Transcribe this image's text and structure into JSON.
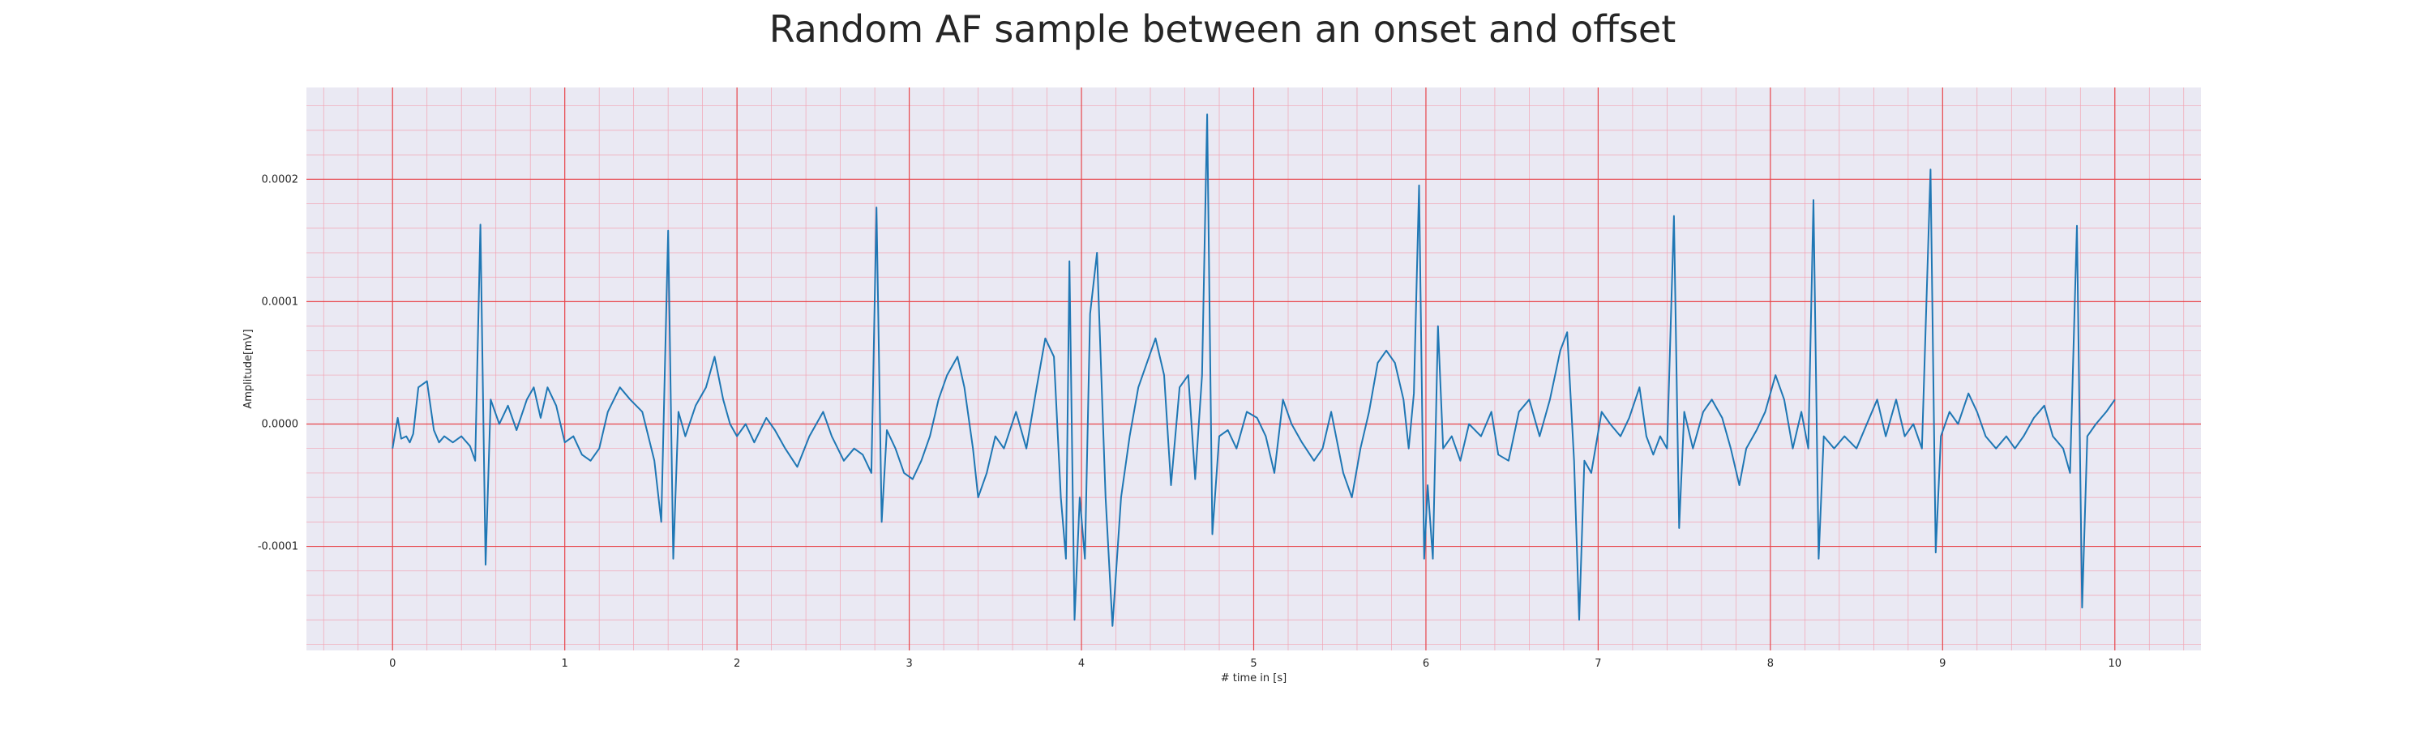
{
  "chart_data": {
    "type": "line",
    "title": "Random AF sample between an onset and offset",
    "xlabel": "# time in [s]",
    "ylabel": "Amplitude[mV]",
    "xlim": [
      -0.5,
      10.5
    ],
    "ylim": [
      -0.000185,
      0.000275
    ],
    "x_ticks": [
      0,
      1,
      2,
      3,
      4,
      5,
      6,
      7,
      8,
      9,
      10
    ],
    "x_tick_labels": [
      "0",
      "1",
      "2",
      "3",
      "4",
      "5",
      "6",
      "7",
      "8",
      "9",
      "10"
    ],
    "y_ticks": [
      -0.0001,
      0.0,
      0.0001,
      0.0002
    ],
    "y_tick_labels": [
      "-0.0001",
      "0.0000",
      "0.0001",
      "0.0002"
    ],
    "grid": true,
    "minor_grid": true,
    "colors": {
      "line": "#1f77b4",
      "background": "#eae9f3",
      "major_grid": "#e8464b",
      "minor_grid": "#f2a3b3"
    },
    "series": [
      {
        "points": [
          [
            0.0,
            -2e-05
          ],
          [
            0.03,
            5e-06
          ],
          [
            0.05,
            -1.2e-05
          ],
          [
            0.08,
            -1e-05
          ],
          [
            0.1,
            -1.5e-05
          ],
          [
            0.12,
            -8e-06
          ],
          [
            0.15,
            3e-05
          ],
          [
            0.2,
            3.5e-05
          ],
          [
            0.24,
            -5e-06
          ],
          [
            0.27,
            -1.5e-05
          ],
          [
            0.3,
            -1e-05
          ],
          [
            0.35,
            -1.5e-05
          ],
          [
            0.4,
            -1e-05
          ],
          [
            0.45,
            -1.8e-05
          ],
          [
            0.48,
            -3e-05
          ],
          [
            0.51,
            0.000163
          ],
          [
            0.54,
            -0.000115
          ],
          [
            0.57,
            2e-05
          ],
          [
            0.62,
            0.0
          ],
          [
            0.67,
            1.5e-05
          ],
          [
            0.72,
            -5e-06
          ],
          [
            0.78,
            2e-05
          ],
          [
            0.82,
            3e-05
          ],
          [
            0.86,
            5e-06
          ],
          [
            0.9,
            3e-05
          ],
          [
            0.95,
            1.5e-05
          ],
          [
            1.0,
            -1.5e-05
          ],
          [
            1.05,
            -1e-05
          ],
          [
            1.1,
            -2.5e-05
          ],
          [
            1.15,
            -3e-05
          ],
          [
            1.2,
            -2e-05
          ],
          [
            1.25,
            1e-05
          ],
          [
            1.32,
            3e-05
          ],
          [
            1.38,
            2e-05
          ],
          [
            1.45,
            1e-05
          ],
          [
            1.52,
            -3e-05
          ],
          [
            1.56,
            -8e-05
          ],
          [
            1.6,
            0.000158
          ],
          [
            1.63,
            -0.00011
          ],
          [
            1.66,
            1e-05
          ],
          [
            1.7,
            -1e-05
          ],
          [
            1.76,
            1.5e-05
          ],
          [
            1.82,
            3e-05
          ],
          [
            1.87,
            5.5e-05
          ],
          [
            1.92,
            2e-05
          ],
          [
            1.96,
            0.0
          ],
          [
            2.0,
            -1e-05
          ],
          [
            2.05,
            0.0
          ],
          [
            2.1,
            -1.5e-05
          ],
          [
            2.17,
            5e-06
          ],
          [
            2.22,
            -5e-06
          ],
          [
            2.28,
            -2e-05
          ],
          [
            2.35,
            -3.5e-05
          ],
          [
            2.42,
            -1e-05
          ],
          [
            2.5,
            1e-05
          ],
          [
            2.55,
            -1e-05
          ],
          [
            2.62,
            -3e-05
          ],
          [
            2.68,
            -2e-05
          ],
          [
            2.73,
            -2.5e-05
          ],
          [
            2.78,
            -4e-05
          ],
          [
            2.81,
            0.000177
          ],
          [
            2.84,
            -8e-05
          ],
          [
            2.87,
            -5e-06
          ],
          [
            2.92,
            -2e-05
          ],
          [
            2.97,
            -4e-05
          ],
          [
            3.02,
            -4.5e-05
          ],
          [
            3.07,
            -3e-05
          ],
          [
            3.12,
            -1e-05
          ],
          [
            3.17,
            2e-05
          ],
          [
            3.22,
            4e-05
          ],
          [
            3.28,
            5.5e-05
          ],
          [
            3.32,
            3e-05
          ],
          [
            3.37,
            -2e-05
          ],
          [
            3.4,
            -6e-05
          ],
          [
            3.45,
            -4e-05
          ],
          [
            3.5,
            -1e-05
          ],
          [
            3.55,
            -2e-05
          ],
          [
            3.62,
            1e-05
          ],
          [
            3.68,
            -2e-05
          ],
          [
            3.74,
            3e-05
          ],
          [
            3.79,
            7e-05
          ],
          [
            3.84,
            5.5e-05
          ],
          [
            3.88,
            -6e-05
          ],
          [
            3.91,
            -0.00011
          ],
          [
            3.93,
            0.000133
          ],
          [
            3.96,
            -0.00016
          ],
          [
            3.99,
            -6e-05
          ],
          [
            4.02,
            -0.00011
          ],
          [
            4.05,
            9e-05
          ],
          [
            4.09,
            0.00014
          ],
          [
            4.14,
            -6e-05
          ],
          [
            4.18,
            -0.000165
          ],
          [
            4.23,
            -6e-05
          ],
          [
            4.28,
            -1e-05
          ],
          [
            4.33,
            3e-05
          ],
          [
            4.38,
            5e-05
          ],
          [
            4.43,
            7e-05
          ],
          [
            4.48,
            4e-05
          ],
          [
            4.52,
            -5e-05
          ],
          [
            4.57,
            3e-05
          ],
          [
            4.62,
            4e-05
          ],
          [
            4.66,
            -4.5e-05
          ],
          [
            4.7,
            4e-05
          ],
          [
            4.73,
            0.000253
          ],
          [
            4.76,
            -9e-05
          ],
          [
            4.8,
            -1e-05
          ],
          [
            4.85,
            -5e-06
          ],
          [
            4.9,
            -2e-05
          ],
          [
            4.96,
            1e-05
          ],
          [
            5.02,
            5e-06
          ],
          [
            5.07,
            -1e-05
          ],
          [
            5.12,
            -4e-05
          ],
          [
            5.17,
            2e-05
          ],
          [
            5.22,
            0.0
          ],
          [
            5.28,
            -1.5e-05
          ],
          [
            5.35,
            -3e-05
          ],
          [
            5.4,
            -2e-05
          ],
          [
            5.45,
            1e-05
          ],
          [
            5.52,
            -4e-05
          ],
          [
            5.57,
            -6e-05
          ],
          [
            5.62,
            -2e-05
          ],
          [
            5.67,
            1e-05
          ],
          [
            5.72,
            5e-05
          ],
          [
            5.77,
            6e-05
          ],
          [
            5.82,
            5e-05
          ],
          [
            5.87,
            2e-05
          ],
          [
            5.9,
            -2e-05
          ],
          [
            5.93,
            2.5e-05
          ],
          [
            5.96,
            0.000195
          ],
          [
            5.99,
            -0.00011
          ],
          [
            6.01,
            -5e-05
          ],
          [
            6.04,
            -0.00011
          ],
          [
            6.07,
            8e-05
          ],
          [
            6.1,
            -2e-05
          ],
          [
            6.15,
            -1e-05
          ],
          [
            6.2,
            -3e-05
          ],
          [
            6.25,
            0.0
          ],
          [
            6.32,
            -1e-05
          ],
          [
            6.38,
            1e-05
          ],
          [
            6.42,
            -2.5e-05
          ],
          [
            6.48,
            -3e-05
          ],
          [
            6.54,
            1e-05
          ],
          [
            6.6,
            2e-05
          ],
          [
            6.66,
            -1e-05
          ],
          [
            6.72,
            2e-05
          ],
          [
            6.78,
            6e-05
          ],
          [
            6.82,
            7.5e-05
          ],
          [
            6.86,
            -3e-05
          ],
          [
            6.89,
            -0.00016
          ],
          [
            6.92,
            -3e-05
          ],
          [
            6.96,
            -4e-05
          ],
          [
            7.02,
            1e-05
          ],
          [
            7.07,
            0.0
          ],
          [
            7.13,
            -1e-05
          ],
          [
            7.18,
            5e-06
          ],
          [
            7.24,
            3e-05
          ],
          [
            7.28,
            -1e-05
          ],
          [
            7.32,
            -2.5e-05
          ],
          [
            7.36,
            -1e-05
          ],
          [
            7.4,
            -2e-05
          ],
          [
            7.44,
            0.00017
          ],
          [
            7.47,
            -8.5e-05
          ],
          [
            7.5,
            1e-05
          ],
          [
            7.55,
            -2e-05
          ],
          [
            7.61,
            1e-05
          ],
          [
            7.66,
            2e-05
          ],
          [
            7.72,
            5e-06
          ],
          [
            7.77,
            -2e-05
          ],
          [
            7.82,
            -5e-05
          ],
          [
            7.86,
            -2e-05
          ],
          [
            7.92,
            -5e-06
          ],
          [
            7.97,
            1e-05
          ],
          [
            8.03,
            4e-05
          ],
          [
            8.08,
            2e-05
          ],
          [
            8.13,
            -2e-05
          ],
          [
            8.18,
            1e-05
          ],
          [
            8.22,
            -2e-05
          ],
          [
            8.25,
            0.000183
          ],
          [
            8.28,
            -0.00011
          ],
          [
            8.31,
            -1e-05
          ],
          [
            8.37,
            -2e-05
          ],
          [
            8.43,
            -1e-05
          ],
          [
            8.5,
            -2e-05
          ],
          [
            8.56,
            0.0
          ],
          [
            8.62,
            2e-05
          ],
          [
            8.67,
            -1e-05
          ],
          [
            8.73,
            2e-05
          ],
          [
            8.78,
            -1e-05
          ],
          [
            8.83,
            0.0
          ],
          [
            8.88,
            -2e-05
          ],
          [
            8.93,
            0.000208
          ],
          [
            8.96,
            -0.000105
          ],
          [
            8.99,
            -1e-05
          ],
          [
            9.04,
            1e-05
          ],
          [
            9.09,
            0.0
          ],
          [
            9.15,
            2.5e-05
          ],
          [
            9.2,
            1e-05
          ],
          [
            9.25,
            -1e-05
          ],
          [
            9.31,
            -2e-05
          ],
          [
            9.37,
            -1e-05
          ],
          [
            9.42,
            -2e-05
          ],
          [
            9.47,
            -1e-05
          ],
          [
            9.53,
            5e-06
          ],
          [
            9.59,
            1.5e-05
          ],
          [
            9.64,
            -1e-05
          ],
          [
            9.7,
            -2e-05
          ],
          [
            9.74,
            -4e-05
          ],
          [
            9.78,
            0.000162
          ],
          [
            9.81,
            -0.00015
          ],
          [
            9.84,
            -1e-05
          ],
          [
            9.89,
            0.0
          ],
          [
            9.95,
            1e-05
          ],
          [
            10.0,
            2e-05
          ]
        ]
      }
    ]
  }
}
